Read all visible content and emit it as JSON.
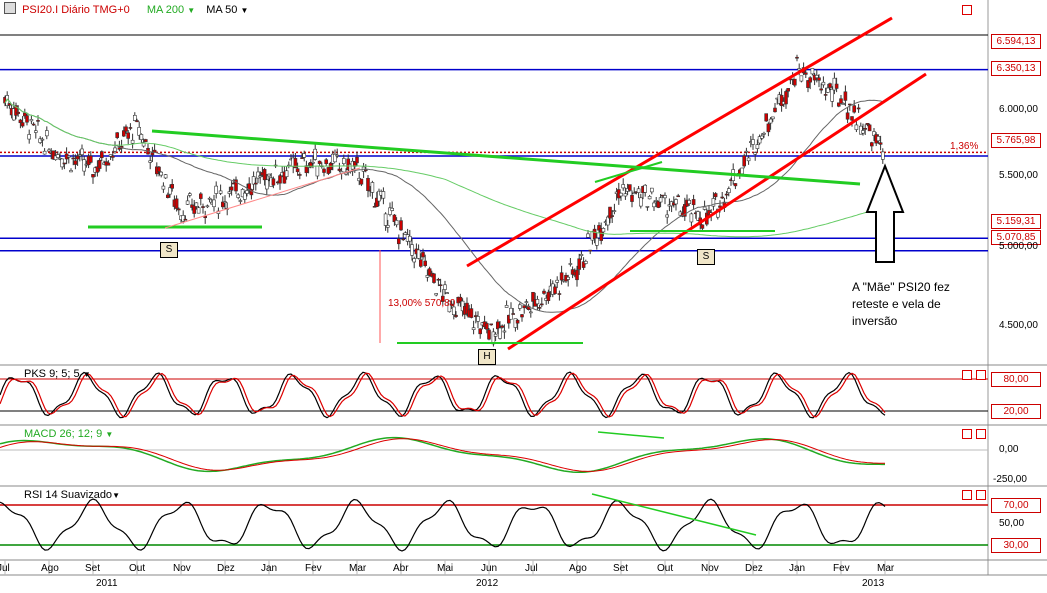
{
  "header": {
    "symbol_label": "PSI20.I Diário TMG+0",
    "ma200_label": "MA 200",
    "ma50_label": "MA 50"
  },
  "note": "A \"Mãe\" PSI20 fez reteste e vela de inversão",
  "main_annotation": "13,00% 570,80",
  "price_axis": {
    "ticks": [
      "6.000,00",
      "5.500,00",
      "5.000,00",
      "4.500,00"
    ],
    "boxes": [
      "6.594,13",
      "6.350,13",
      "5.765,98",
      "5.159,31",
      "5.070,85"
    ],
    "pct_label": "1,36%"
  },
  "pattern_labels": {
    "left_shoulder": "S",
    "head": "H",
    "right_shoulder": "S"
  },
  "panels": {
    "pks": {
      "label": "PKS 9; 5; 5",
      "upper": "80,00",
      "lower": "20,00"
    },
    "macd": {
      "label": "MACD 26; 12; 9",
      "upper": "0,00",
      "lower": "-250,00"
    },
    "rsi": {
      "label": "RSI 14 Suavizado",
      "upper": "70,00",
      "mid": "50,00",
      "lower": "30,00"
    }
  },
  "x_axis": {
    "months": [
      "Jul",
      "Ago",
      "Set",
      "Out",
      "Nov",
      "Dez",
      "Jan",
      "Fev",
      "Mar",
      "Abr",
      "Mai",
      "Jun",
      "Jul",
      "Ago",
      "Set",
      "Out",
      "Nov",
      "Dez",
      "Jan",
      "Fev",
      "Mar"
    ],
    "years": [
      "2011",
      "2012",
      "2013"
    ]
  },
  "colors": {
    "candle_up": "#ffffff",
    "candle_down": "#cc0000",
    "channel": "#ff0000",
    "neckline": "#22cc22",
    "levels": "#0000cc"
  },
  "chart_data": {
    "type": "candlestick",
    "title": "PSI20.I Diário TMG+0",
    "y_range": [
      4300,
      6700
    ],
    "close_path": [
      {
        "x": "2011-07",
        "y": 6150
      },
      {
        "x": "2011-08",
        "y": 5800
      },
      {
        "x": "2011-09",
        "y": 5650
      },
      {
        "x": "2011-10",
        "y": 5950
      },
      {
        "x": "2011-11",
        "y": 5350
      },
      {
        "x": "2011-12",
        "y": 5450
      },
      {
        "x": "2012-01",
        "y": 5600
      },
      {
        "x": "2012-02",
        "y": 5700
      },
      {
        "x": "2012-03",
        "y": 5650
      },
      {
        "x": "2012-04",
        "y": 5200
      },
      {
        "x": "2012-05",
        "y": 4750
      },
      {
        "x": "2012-06",
        "y": 4500
      },
      {
        "x": "2012-07",
        "y": 4700
      },
      {
        "x": "2012-08",
        "y": 4950
      },
      {
        "x": "2012-09",
        "y": 5500
      },
      {
        "x": "2012-10",
        "y": 5400
      },
      {
        "x": "2012-11",
        "y": 5300
      },
      {
        "x": "2012-12",
        "y": 5800
      },
      {
        "x": "2013-01",
        "y": 6350
      },
      {
        "x": "2013-02",
        "y": 6150
      },
      {
        "x": "2013-03",
        "y": 5765
      }
    ],
    "horizontal_levels": [
      6594.13,
      6350.13,
      5765.98,
      5159.31,
      5070.85
    ]
  }
}
